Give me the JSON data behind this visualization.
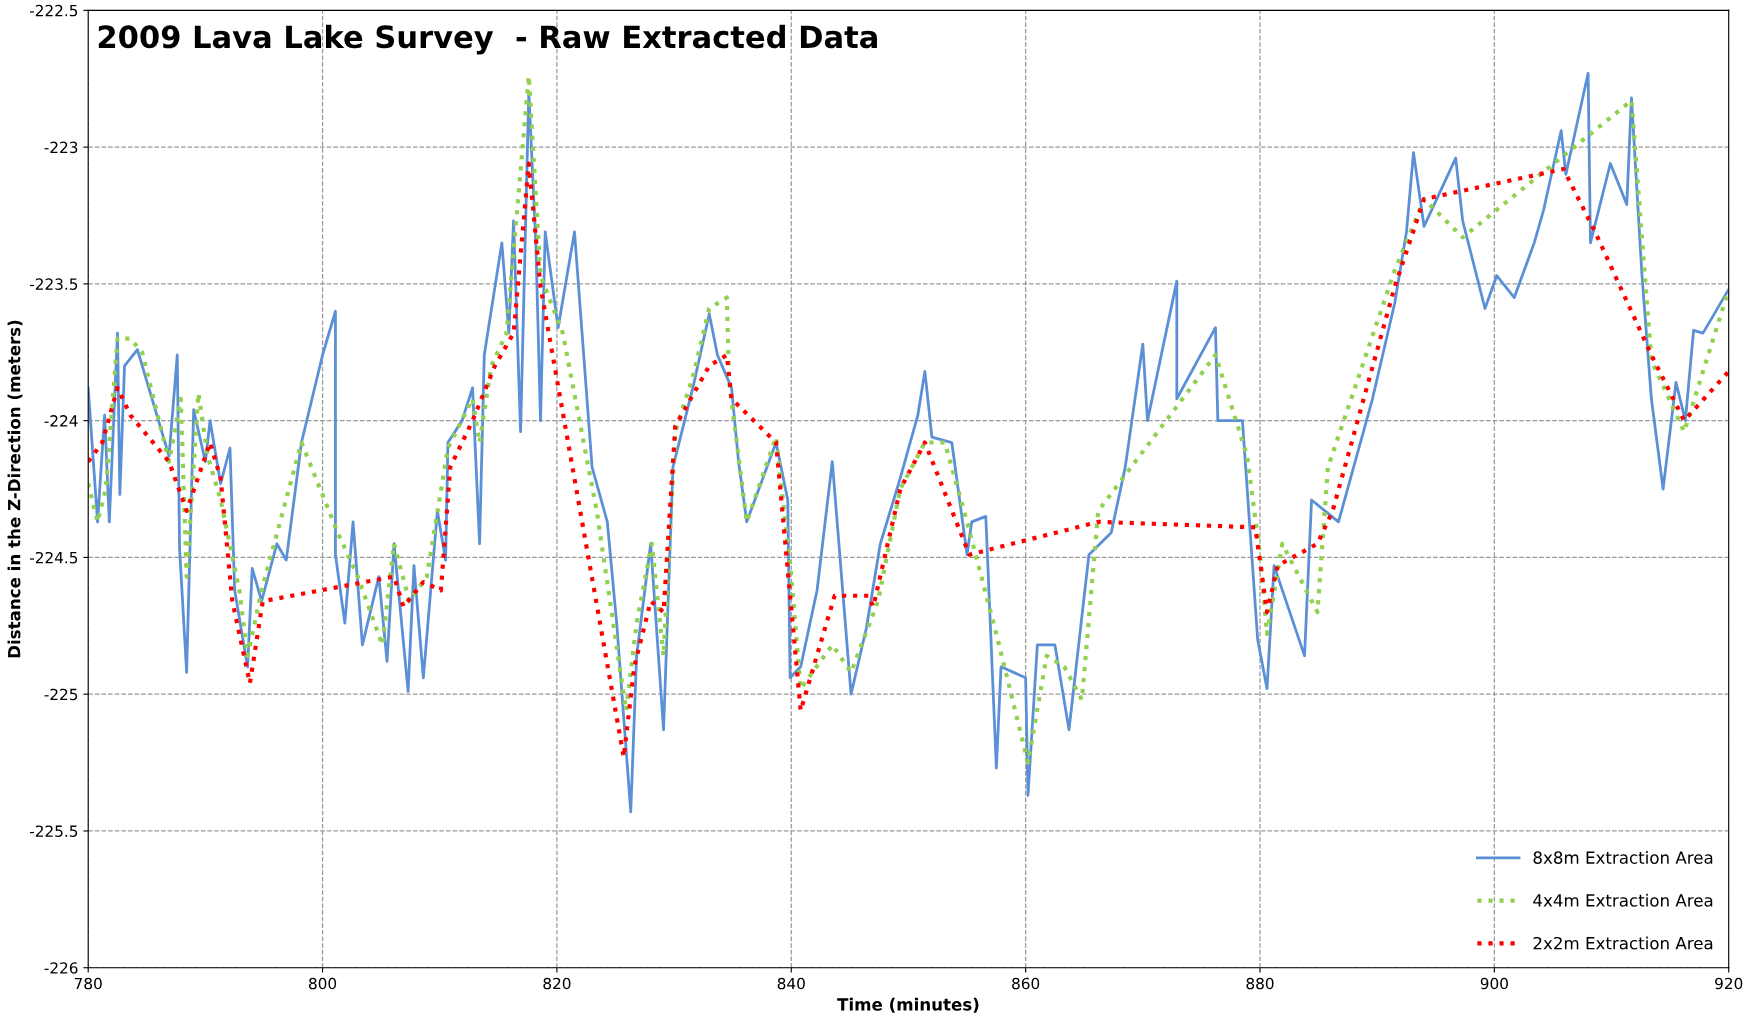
{
  "chart_data": {
    "type": "line",
    "title": "2009 Lava Lake Survey  - Raw Extracted Data",
    "xlabel": "Time (minutes)",
    "ylabel": "Distance in the Z-Direction (meters)",
    "xlim": [
      780,
      920
    ],
    "xticks": [
      780,
      800,
      820,
      840,
      860,
      880,
      900,
      920
    ],
    "ylim": [
      -226,
      -222.5
    ],
    "yticks": [
      -226,
      -225.5,
      -225,
      -224.5,
      -224,
      -223.5,
      -223,
      -222.5
    ],
    "grid": true,
    "legend": "bottom right",
    "marker": "none",
    "series": [
      {
        "name": "8x8m Extraction Area",
        "color": "#5b8fd6",
        "line_style": "solid",
        "x": [
          780,
          780.8,
          781.4,
          781.8,
          782.5,
          782.7,
          783.1,
          784.2,
          786.9,
          787.6,
          787.8,
          788.4,
          789.0,
          790.0,
          790.4,
          791.3,
          792.1,
          792.5,
          793.6,
          794.0,
          794.8,
          796.1,
          796.9,
          798.2,
          800.0,
          801.1,
          801.1,
          801.9,
          802.6,
          803.4,
          804.8,
          805.5,
          806.1,
          807.3,
          807.8,
          808.6,
          809.8,
          810.5,
          810.7,
          811.9,
          812.8,
          813.4,
          813.8,
          815.3,
          815.9,
          816.3,
          816.9,
          817.6,
          818.2,
          818.6,
          819.0,
          820.1,
          821.5,
          823.0,
          824.3,
          825.1,
          826.3,
          826.8,
          828.0,
          829.1,
          829.9,
          831.6,
          833.0,
          833.7,
          834.9,
          835.5,
          836.2,
          838.7,
          839.7,
          839.9,
          840.8,
          842.2,
          843.5,
          845.1,
          846.4,
          847.6,
          849.3,
          850.8,
          851.4,
          852.0,
          853.7,
          855.0,
          855.4,
          856.6,
          857.5,
          857.9,
          860.0,
          860.2,
          861.0,
          862.5,
          863.7,
          865.4,
          867.3,
          868.5,
          870.0,
          870.4,
          872.9,
          872.9,
          876.2,
          876.4,
          878.5,
          879.8,
          880.6,
          881.2,
          883.8,
          884.4,
          886.7,
          889.6,
          891.5,
          892.5,
          893.1,
          894.0,
          896.7,
          897.3,
          899.2,
          900.2,
          901.7,
          903.4,
          904.2,
          905.7,
          906.1,
          908.0,
          908.2,
          909.9,
          911.3,
          911.7,
          912.6,
          913.4,
          914.4,
          915.5,
          916.3,
          917.0,
          917.8,
          920.0
        ],
        "values": [
          -223.88,
          -224.37,
          -223.98,
          -224.37,
          -223.68,
          -224.27,
          -223.8,
          -223.74,
          -224.13,
          -223.76,
          -224.47,
          -224.92,
          -223.96,
          -224.15,
          -224.0,
          -224.23,
          -224.1,
          -224.62,
          -224.9,
          -224.54,
          -224.66,
          -224.45,
          -224.51,
          -224.08,
          -223.76,
          -223.6,
          -224.49,
          -224.74,
          -224.37,
          -224.82,
          -224.57,
          -224.88,
          -224.45,
          -224.99,
          -224.53,
          -224.94,
          -224.33,
          -224.51,
          -224.08,
          -224.0,
          -223.88,
          -224.45,
          -223.76,
          -223.35,
          -223.68,
          -223.27,
          -224.04,
          -222.8,
          -223.35,
          -224.0,
          -223.31,
          -223.66,
          -223.31,
          -224.17,
          -224.37,
          -224.74,
          -225.43,
          -224.86,
          -224.45,
          -225.13,
          -224.17,
          -223.88,
          -223.61,
          -223.76,
          -223.88,
          -224.15,
          -224.37,
          -224.08,
          -224.29,
          -224.94,
          -224.9,
          -224.62,
          -224.15,
          -225.0,
          -224.76,
          -224.45,
          -224.21,
          -223.98,
          -223.82,
          -224.06,
          -224.08,
          -224.49,
          -224.37,
          -224.35,
          -225.27,
          -224.9,
          -224.94,
          -225.37,
          -224.82,
          -224.82,
          -225.13,
          -224.49,
          -224.41,
          -224.17,
          -223.72,
          -224.0,
          -223.49,
          -223.92,
          -223.66,
          -224.0,
          -224.0,
          -224.8,
          -224.98,
          -224.53,
          -224.86,
          -224.29,
          -224.37,
          -223.92,
          -223.57,
          -223.31,
          -223.02,
          -223.29,
          -223.04,
          -223.27,
          -223.59,
          -223.47,
          -223.55,
          -223.35,
          -223.23,
          -222.94,
          -223.1,
          -222.73,
          -223.35,
          -223.06,
          -223.21,
          -222.82,
          -223.47,
          -223.92,
          -224.25,
          -223.86,
          -224.0,
          -223.67,
          -223.68,
          -223.52
        ]
      },
      {
        "name": "4x4m Extraction Area",
        "color": "#92d050",
        "line_style": "dotted",
        "x": [
          780,
          780.8,
          781.5,
          782.5,
          783.6,
          784.6,
          786.9,
          787.9,
          788.4,
          789.4,
          790.2,
          791.3,
          792.9,
          793.6,
          794.8,
          798.2,
          801.3,
          803.0,
          805.1,
          806.1,
          807.4,
          808.9,
          810.7,
          812.8,
          813.4,
          814.4,
          815.7,
          817.6,
          818.6,
          820.5,
          823.4,
          825.9,
          826.8,
          828.1,
          829.1,
          830.1,
          831.6,
          833.0,
          834.5,
          834.7,
          836.2,
          838.7,
          840.0,
          840.8,
          843.5,
          845.1,
          847.4,
          849.3,
          851.4,
          853.1,
          855.0,
          857.5,
          860.2,
          861.8,
          863.3,
          864.8,
          866.2,
          876.2,
          878.9,
          880.0,
          880.6,
          881.9,
          884.9,
          885.8,
          891.5,
          894.0,
          897.3,
          911.7,
          913.4,
          916.2,
          920.0
        ],
        "values": [
          -224.23,
          -224.37,
          -224.25,
          -223.7,
          -223.7,
          -223.75,
          -224.15,
          -223.92,
          -224.57,
          -223.9,
          -224.13,
          -224.29,
          -224.62,
          -224.86,
          -224.62,
          -224.08,
          -224.41,
          -224.57,
          -224.82,
          -224.45,
          -224.66,
          -224.57,
          -224.1,
          -223.92,
          -224.08,
          -223.8,
          -223.68,
          -222.74,
          -223.47,
          -223.68,
          -224.33,
          -225.06,
          -224.74,
          -224.45,
          -224.86,
          -224.04,
          -223.84,
          -223.59,
          -223.55,
          -223.86,
          -224.37,
          -224.06,
          -224.57,
          -224.98,
          -224.82,
          -224.92,
          -224.66,
          -224.25,
          -224.08,
          -224.08,
          -224.37,
          -224.78,
          -225.25,
          -224.86,
          -224.9,
          -225.02,
          -224.33,
          -223.76,
          -224.13,
          -224.49,
          -224.78,
          -224.45,
          -224.7,
          -224.17,
          -223.45,
          -223.19,
          -223.33,
          -222.83,
          -223.78,
          -224.04,
          -223.52
        ]
      },
      {
        "name": "2x2m Extraction Area",
        "color": "#ff0000",
        "line_style": "dotted",
        "x": [
          780,
          781.2,
          782.5,
          783.6,
          786.9,
          788.4,
          790.4,
          791.3,
          792.3,
          793.8,
          794.9,
          806.1,
          806.9,
          808.6,
          810.1,
          810.9,
          812.8,
          814.7,
          816.3,
          817.6,
          818.6,
          825.7,
          826.6,
          828.0,
          829.1,
          830.1,
          833.0,
          834.5,
          834.9,
          838.7,
          840.8,
          843.7,
          846.6,
          847.0,
          849.3,
          851.4,
          855.2,
          866.2,
          879.6,
          880.6,
          881.5,
          884.9,
          886.2,
          891.5,
          894.0,
          905.9,
          908.6,
          913.4,
          916.2,
          920.0
        ],
        "values": [
          -224.15,
          -224.08,
          -223.88,
          -223.98,
          -224.15,
          -224.33,
          -224.08,
          -224.21,
          -224.66,
          -224.96,
          -224.66,
          -224.57,
          -224.68,
          -224.59,
          -224.62,
          -224.17,
          -224.0,
          -223.8,
          -223.68,
          -223.06,
          -223.51,
          -225.23,
          -224.9,
          -224.66,
          -224.7,
          -224.02,
          -223.8,
          -223.76,
          -223.92,
          -224.08,
          -225.06,
          -224.64,
          -224.64,
          -224.68,
          -224.25,
          -224.08,
          -224.49,
          -224.37,
          -224.39,
          -224.7,
          -224.53,
          -224.45,
          -224.33,
          -223.51,
          -223.19,
          -223.08,
          -223.31,
          -223.76,
          -224.0,
          -223.82
        ]
      }
    ]
  }
}
